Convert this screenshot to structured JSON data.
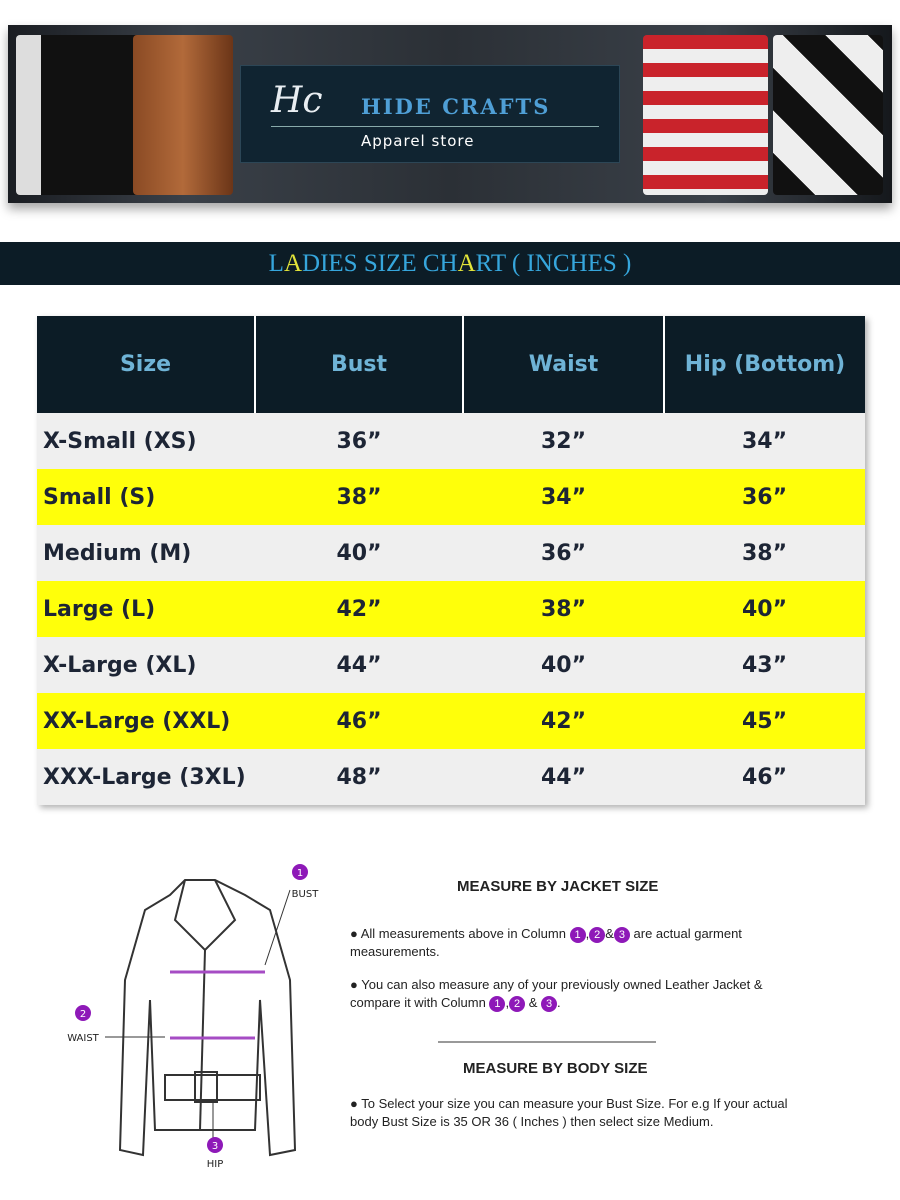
{
  "banner": {
    "logo_mark": "Hc",
    "brand": "HIDE CRAFTS",
    "tagline": "Apparel store"
  },
  "title": {
    "parts": [
      {
        "t": "L",
        "hl": false
      },
      {
        "t": "A",
        "hl": true
      },
      {
        "t": "DIES SIZE CH",
        "hl": false
      },
      {
        "t": "A",
        "hl": true
      },
      {
        "t": "RT ( INCHES )",
        "hl": false
      }
    ]
  },
  "title_text": {
    "p0": "L",
    "p1": "A",
    "p2": "DIES SIZE CH",
    "p3": "A",
    "p4": "RT ( INCHES )"
  },
  "table": {
    "headers": [
      "Size",
      "Bust",
      "Waist",
      "Hip (Bottom)"
    ],
    "rows": [
      [
        "X-Small (XS)",
        "36”",
        "32”",
        "34”"
      ],
      [
        "Small (S)",
        "38”",
        "34”",
        "36”"
      ],
      [
        "Medium (M)",
        "40”",
        "36”",
        "38”"
      ],
      [
        "Large (L)",
        "42”",
        "38”",
        "40”"
      ],
      [
        "X-Large (XL)",
        "44”",
        "40”",
        "43”"
      ],
      [
        "XX-Large (XXL)",
        "46”",
        "42”",
        "45”"
      ],
      [
        "XXX-Large (3XL)",
        "48”",
        "44”",
        "46”"
      ]
    ],
    "highlight_color": "#ffff0a",
    "header_color": "#0c1c26"
  },
  "diagram": {
    "bust": "BUST",
    "waist": "WAIST",
    "hip": "HIP",
    "n1": "1",
    "n2": "2",
    "n3": "3"
  },
  "guide": {
    "jacket_heading": "MEASURE BY JACKET SIZE",
    "b1_pre": "All measurements above in Column",
    "b1_post": "are actual garment measurements.",
    "b2_pre": "You can also measure any of your previously owned Leather Jacket & compare it with Column",
    "amp": "&",
    "comma": ",",
    "period": ".",
    "body_heading": "MEASURE BY BODY SIZE",
    "b3": "To Select your size you can measure your Bust Size. For e.g If your actual body Bust Size is  35 OR 36 ( Inches ) then select size Medium."
  }
}
